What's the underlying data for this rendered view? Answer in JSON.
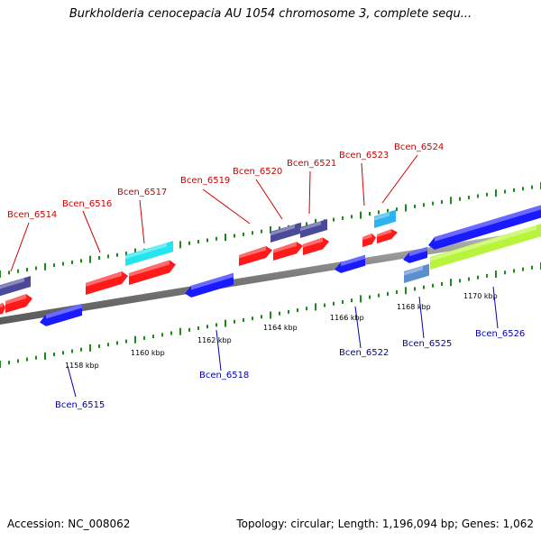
{
  "header": {
    "title": "Burkholderia cenocepacia AU 1054 chromosome 3, complete sequ..."
  },
  "footer": {
    "accession": "Accession: NC_008062",
    "topology": "Topology: circular; Length: 1,196,094 bp; Genes: 1,062"
  },
  "colors": {
    "forward_cds": "#ff1a1a",
    "reverse_cds": "#1a1aff",
    "dark_feature": "#4b4a9a",
    "cyan_feature": "#22e5ee",
    "lightblue_feature": "#2db3ef",
    "steelblue_feature": "#5a8fd0",
    "green_feature": "#b8f53a",
    "tick_green": "#1a8a1a",
    "axis_gray": "#888888",
    "forward_label": "#cc0000",
    "reverse_label": "#0000aa"
  },
  "scale_labels": [
    "1158 kbp",
    "1160 kbp",
    "1162 kbp",
    "1164 kbp",
    "1166 kbp",
    "1168 kbp",
    "1170 kbp"
  ],
  "genes": [
    {
      "name": "Bcen_6514",
      "strand": "forward"
    },
    {
      "name": "Bcen_6515",
      "strand": "reverse"
    },
    {
      "name": "Bcen_6516",
      "strand": "forward"
    },
    {
      "name": "Bcen_6517",
      "strand": "forward"
    },
    {
      "name": "Bcen_6518",
      "strand": "reverse"
    },
    {
      "name": "Bcen_6519",
      "strand": "forward"
    },
    {
      "name": "Bcen_6520",
      "strand": "forward"
    },
    {
      "name": "Bcen_6521",
      "strand": "forward"
    },
    {
      "name": "Bcen_6522",
      "strand": "reverse"
    },
    {
      "name": "Bcen_6523",
      "strand": "forward"
    },
    {
      "name": "Bcen_6524",
      "strand": "forward"
    },
    {
      "name": "Bcen_6525",
      "strand": "reverse"
    },
    {
      "name": "Bcen_6526",
      "strand": "reverse"
    }
  ]
}
